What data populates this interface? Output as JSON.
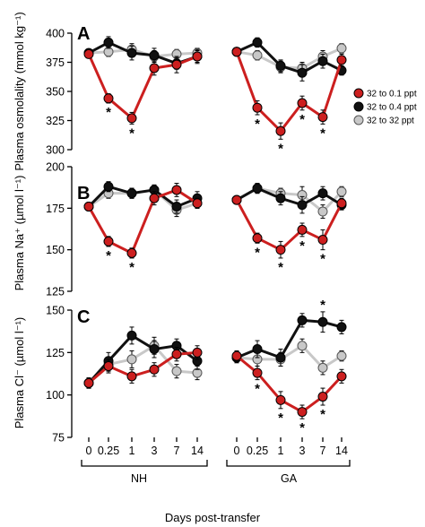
{
  "chart_data": [
    {
      "type": "line",
      "panel": "A",
      "ylabel": "Plasma osmolality (mmol kg⁻¹)",
      "ylim": [
        300,
        400
      ],
      "yticks": [
        300,
        325,
        350,
        375,
        400
      ],
      "groups": [
        "NH",
        "GA"
      ],
      "x_ticks": [
        "0",
        "0.25",
        "1",
        "3",
        "7",
        "14"
      ],
      "series": [
        {
          "name": "32 to 0.1 ppt",
          "color": "#cc1f1f",
          "values": {
            "NH": [
              382,
              344,
              327,
              370,
              373,
              380
            ],
            "GA": [
              384,
              336,
              316,
              340,
              328,
              377
            ]
          },
          "errors": {
            "NH": [
              3,
              4,
              5,
              6,
              7,
              6
            ],
            "GA": [
              3,
              6,
              7,
              6,
              6,
              5
            ]
          }
        },
        {
          "name": "32 to 0.4 ppt",
          "color": "#111111",
          "values": {
            "NH": [
              383,
              392,
              383,
              381,
              374,
              380
            ],
            "GA": [
              384,
              392,
              372,
              366,
              376,
              368
            ]
          },
          "errors": {
            "NH": [
              3,
              5,
              6,
              6,
              5,
              5
            ],
            "GA": [
              3,
              4,
              5,
              7,
              6,
              4
            ]
          }
        },
        {
          "name": "32 to 32 ppt",
          "color": "#c8c8c8",
          "values": {
            "NH": [
              383,
              384,
              386,
              380,
              382,
              383
            ],
            "GA": [
              384,
              381,
              371,
              370,
              380,
              387
            ]
          },
          "errors": {
            "NH": [
              3,
              4,
              5,
              5,
              4,
              4
            ],
            "GA": [
              3,
              4,
              5,
              5,
              5,
              4
            ]
          }
        }
      ],
      "significance": {
        "NH": [
          "0.25",
          "1"
        ],
        "GA": [
          "0.25",
          "1",
          "3",
          "7"
        ]
      },
      "legend": [
        "32 to 0.1 ppt",
        "32 to 0.4 ppt",
        "32 to 32 ppt"
      ],
      "legend_position": "right"
    },
    {
      "type": "line",
      "panel": "B",
      "ylabel": "Plasma Na⁺ (µmol l⁻¹)",
      "ylim": [
        125,
        200
      ],
      "yticks": [
        125,
        150,
        175,
        200
      ],
      "groups": [
        "NH",
        "GA"
      ],
      "x_ticks": [
        "0",
        "0.25",
        "1",
        "3",
        "7",
        "14"
      ],
      "series": [
        {
          "name": "32 to 0.1 ppt",
          "color": "#cc1f1f",
          "values": {
            "NH": [
              176,
              155,
              148,
              181,
              186,
              178
            ],
            "GA": [
              180,
              157,
              150,
              162,
              156,
              178
            ]
          },
          "errors": {
            "NH": [
              2,
              3,
              3,
              4,
              4,
              3
            ],
            "GA": [
              2,
              3,
              5,
              4,
              6,
              3
            ]
          }
        },
        {
          "name": "32 to 0.4 ppt",
          "color": "#111111",
          "values": {
            "NH": [
              176,
              188,
              184,
              186,
              176,
              181
            ],
            "GA": [
              180,
              187,
              181,
              177,
              184,
              177
            ]
          },
          "errors": {
            "NH": [
              2,
              3,
              3,
              3,
              4,
              4
            ],
            "GA": [
              2,
              3,
              4,
              5,
              4,
              3
            ]
          }
        },
        {
          "name": "32 to 32 ppt",
          "color": "#c8c8c8",
          "values": {
            "NH": [
              176,
              184,
              184,
              186,
              174,
              178
            ],
            "GA": [
              180,
              187,
              184,
              183,
              173,
              185
            ]
          },
          "errors": {
            "NH": [
              2,
              3,
              3,
              3,
              4,
              3
            ],
            "GA": [
              2,
              3,
              3,
              5,
              4,
              3
            ]
          }
        }
      ],
      "significance": {
        "NH": [
          "0.25",
          "1"
        ],
        "GA": [
          "0.25",
          "1",
          "3",
          "7"
        ]
      }
    },
    {
      "type": "line",
      "panel": "C",
      "ylabel": "Plasma Cl⁻ (µmol l⁻¹)",
      "ylim": [
        75,
        150
      ],
      "yticks": [
        75,
        100,
        125,
        150
      ],
      "groups": [
        "NH",
        "GA"
      ],
      "x_ticks": [
        "0",
        "0.25",
        "1",
        "3",
        "7",
        "14"
      ],
      "series": [
        {
          "name": "32 to 0.1 ppt",
          "color": "#cc1f1f",
          "values": {
            "NH": [
              107,
              117,
              111,
              115,
              124,
              125
            ],
            "GA": [
              123,
              113,
              97,
              90,
              99,
              111
            ]
          },
          "errors": {
            "NH": [
              3,
              4,
              4,
              4,
              4,
              4
            ],
            "GA": [
              3,
              4,
              5,
              4,
              5,
              4
            ]
          }
        },
        {
          "name": "32 to 0.4 ppt",
          "color": "#111111",
          "values": {
            "NH": [
              107,
              120,
              135,
              127,
              129,
              120
            ],
            "GA": [
              122,
              127,
              122,
              144,
              143,
              140
            ]
          },
          "errors": {
            "NH": [
              3,
              5,
              5,
              5,
              4,
              5
            ],
            "GA": [
              3,
              5,
              5,
              4,
              6,
              4
            ]
          }
        },
        {
          "name": "32 to 32 ppt",
          "color": "#c8c8c8",
          "values": {
            "NH": [
              107,
              118,
              121,
              129,
              114,
              113
            ],
            "GA": [
              122,
              121,
              121,
              129,
              116,
              123
            ]
          },
          "errors": {
            "NH": [
              3,
              4,
              5,
              5,
              4,
              4
            ],
            "GA": [
              3,
              4,
              4,
              4,
              4,
              3
            ]
          }
        }
      ],
      "significance": {
        "NH": [],
        "GA": [
          "0.25",
          "1",
          "3",
          "7"
        ]
      },
      "significance_above": {
        "NH": [],
        "GA": [
          "7"
        ]
      }
    }
  ],
  "xlabel": "Days post-transfer",
  "significance_marker": "*"
}
